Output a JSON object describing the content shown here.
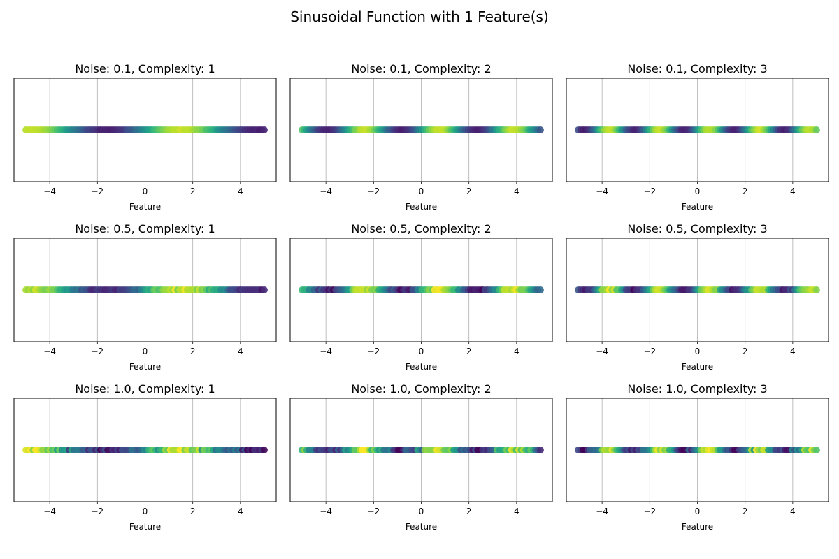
{
  "figure": {
    "title": "Sinusoidal Function with 1 Feature(s)"
  },
  "chart_data": [
    {
      "type": "scatter",
      "title": "Noise: 0.1, Complexity: 1",
      "xlabel": "Feature",
      "ylabel": "",
      "xlim": [
        -5.5,
        5.5
      ],
      "xticks": [
        -4,
        -2,
        0,
        2,
        4
      ],
      "grid": "x-only",
      "y_ticks_shown": false,
      "colormap": "viridis",
      "noise": 0.1,
      "complexity": 1,
      "x_range": [
        -5,
        5
      ],
      "n_points": 100
    },
    {
      "type": "scatter",
      "title": "Noise: 0.1, Complexity: 2",
      "xlabel": "Feature",
      "ylabel": "",
      "xlim": [
        -5.5,
        5.5
      ],
      "xticks": [
        -4,
        -2,
        0,
        2,
        4
      ],
      "grid": "x-only",
      "y_ticks_shown": false,
      "colormap": "viridis",
      "noise": 0.1,
      "complexity": 2,
      "x_range": [
        -5,
        5
      ],
      "n_points": 100
    },
    {
      "type": "scatter",
      "title": "Noise: 0.1, Complexity: 3",
      "xlabel": "Feature",
      "ylabel": "",
      "xlim": [
        -5.5,
        5.5
      ],
      "xticks": [
        -4,
        -2,
        0,
        2,
        4
      ],
      "grid": "x-only",
      "y_ticks_shown": false,
      "colormap": "viridis",
      "noise": 0.1,
      "complexity": 3,
      "x_range": [
        -5,
        5
      ],
      "n_points": 100
    },
    {
      "type": "scatter",
      "title": "Noise: 0.5, Complexity: 1",
      "xlabel": "Feature",
      "ylabel": "",
      "xlim": [
        -5.5,
        5.5
      ],
      "xticks": [
        -4,
        -2,
        0,
        2,
        4
      ],
      "grid": "x-only",
      "y_ticks_shown": false,
      "colormap": "viridis",
      "noise": 0.5,
      "complexity": 1,
      "x_range": [
        -5,
        5
      ],
      "n_points": 100
    },
    {
      "type": "scatter",
      "title": "Noise: 0.5, Complexity: 2",
      "xlabel": "Feature",
      "ylabel": "",
      "xlim": [
        -5.5,
        5.5
      ],
      "xticks": [
        -4,
        -2,
        0,
        2,
        4
      ],
      "grid": "x-only",
      "y_ticks_shown": false,
      "colormap": "viridis",
      "noise": 0.5,
      "complexity": 2,
      "x_range": [
        -5,
        5
      ],
      "n_points": 100
    },
    {
      "type": "scatter",
      "title": "Noise: 0.5, Complexity: 3",
      "xlabel": "Feature",
      "ylabel": "",
      "xlim": [
        -5.5,
        5.5
      ],
      "xticks": [
        -4,
        -2,
        0,
        2,
        4
      ],
      "grid": "x-only",
      "y_ticks_shown": false,
      "colormap": "viridis",
      "noise": 0.5,
      "complexity": 3,
      "x_range": [
        -5,
        5
      ],
      "n_points": 100
    },
    {
      "type": "scatter",
      "title": "Noise: 1.0, Complexity: 1",
      "xlabel": "Feature",
      "ylabel": "",
      "xlim": [
        -5.5,
        5.5
      ],
      "xticks": [
        -4,
        -2,
        0,
        2,
        4
      ],
      "grid": "x-only",
      "y_ticks_shown": false,
      "colormap": "viridis",
      "noise": 1.0,
      "complexity": 1,
      "x_range": [
        -5,
        5
      ],
      "n_points": 100
    },
    {
      "type": "scatter",
      "title": "Noise: 1.0, Complexity: 2",
      "xlabel": "Feature",
      "ylabel": "",
      "xlim": [
        -5.5,
        5.5
      ],
      "xticks": [
        -4,
        -2,
        0,
        2,
        4
      ],
      "grid": "x-only",
      "y_ticks_shown": false,
      "colormap": "viridis",
      "noise": 1.0,
      "complexity": 2,
      "x_range": [
        -5,
        5
      ],
      "n_points": 100
    },
    {
      "type": "scatter",
      "title": "Noise: 1.0, Complexity: 3",
      "xlabel": "Feature",
      "ylabel": "",
      "xlim": [
        -5.5,
        5.5
      ],
      "xticks": [
        -4,
        -2,
        0,
        2,
        4
      ],
      "grid": "x-only",
      "y_ticks_shown": false,
      "colormap": "viridis",
      "noise": 1.0,
      "complexity": 3,
      "x_range": [
        -5,
        5
      ],
      "n_points": 100
    }
  ]
}
